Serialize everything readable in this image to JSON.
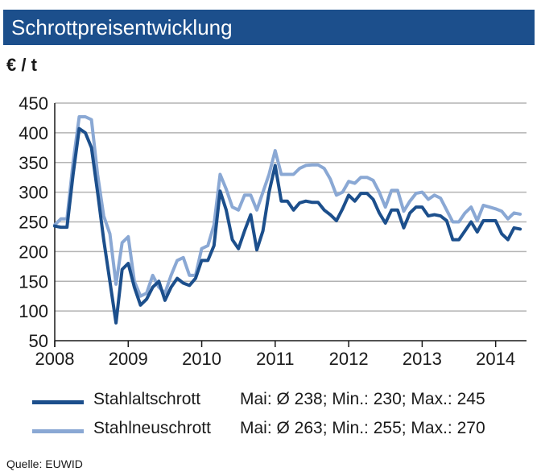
{
  "header": {
    "title": "Schrottpreisentwicklung",
    "unit": "€ / t"
  },
  "source": "Quelle:  EUWID",
  "legend": [
    {
      "name": "Stahlaltschrott",
      "stats": "Mai: Ø 238; Min.: 230; Max.: 245"
    },
    {
      "name": "Stahlneuschrott",
      "stats": "Mai: Ø 263; Min.: 255; Max.: 270"
    }
  ],
  "chart_data": {
    "type": "line",
    "ylim": [
      50,
      450
    ],
    "xlim": [
      2008,
      2014.42
    ],
    "yticks": [
      50,
      100,
      150,
      200,
      250,
      300,
      350,
      400,
      450
    ],
    "xticks": [
      2008,
      2009,
      2010,
      2011,
      2012,
      2013,
      2014
    ],
    "grid": true,
    "legend_position": "bottom",
    "x_start": 2008,
    "x_step": 0.08333,
    "series": [
      {
        "name": "Stahlaltschrott",
        "color": "#1c4f8c",
        "values": [
          243,
          241,
          241,
          330,
          407,
          400,
          375,
          300,
          220,
          150,
          80,
          170,
          180,
          140,
          110,
          120,
          140,
          150,
          118,
          140,
          155,
          147,
          143,
          155,
          185,
          185,
          210,
          302,
          270,
          220,
          205,
          235,
          262,
          203,
          235,
          300,
          345,
          285,
          285,
          270,
          282,
          285,
          283,
          283,
          270,
          262,
          252,
          272,
          295,
          285,
          298,
          298,
          288,
          265,
          248,
          270,
          270,
          240,
          265,
          275,
          275,
          260,
          262,
          260,
          252,
          220,
          220,
          235,
          250,
          233,
          252,
          252,
          252,
          230,
          220,
          240,
          238
        ]
      },
      {
        "name": "Stahlneuschrott",
        "color": "#8aa8d4",
        "values": [
          245,
          255,
          255,
          350,
          427,
          427,
          422,
          330,
          260,
          230,
          145,
          215,
          225,
          150,
          125,
          130,
          160,
          140,
          130,
          160,
          185,
          190,
          160,
          160,
          205,
          210,
          245,
          330,
          305,
          275,
          270,
          295,
          295,
          270,
          300,
          330,
          370,
          330,
          330,
          330,
          340,
          345,
          346,
          346,
          340,
          322,
          295,
          300,
          318,
          315,
          325,
          325,
          320,
          300,
          275,
          303,
          303,
          268,
          285,
          298,
          300,
          288,
          295,
          290,
          270,
          250,
          250,
          265,
          275,
          252,
          278,
          275,
          272,
          268,
          255,
          265,
          263
        ]
      }
    ]
  }
}
